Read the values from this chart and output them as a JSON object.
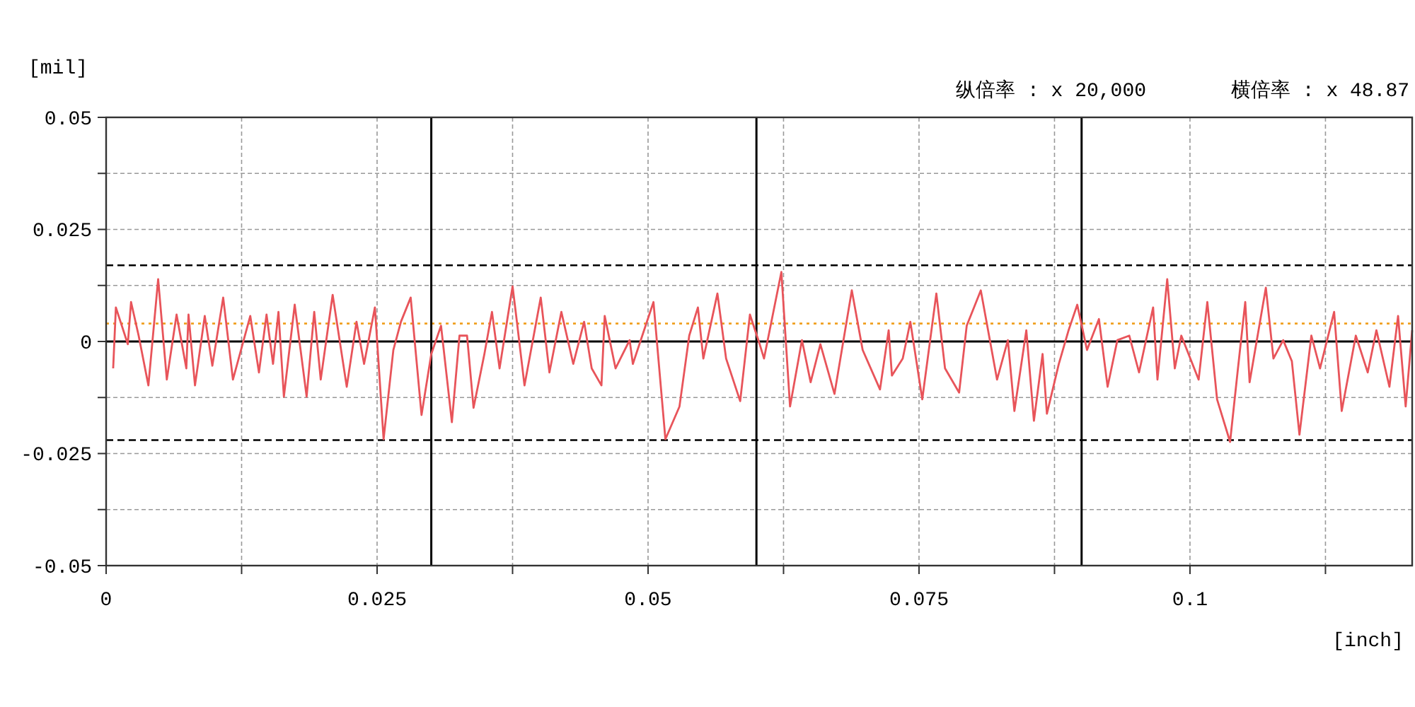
{
  "chart_data": {
    "type": "line",
    "ylabel": "[mil]",
    "xlabel": "[inch]",
    "annotations": [
      "纵倍率 : x 20,000",
      "横倍率 : x 48.87"
    ],
    "x": [
      0.00065,
      0.0009,
      0.002,
      0.0023,
      0.003,
      0.0039,
      0.0048,
      0.0056,
      0.0065,
      0.0074,
      0.0076,
      0.0082,
      0.0091,
      0.0098,
      0.0108,
      0.0117,
      0.0133,
      0.0141,
      0.0148,
      0.0154,
      0.0159,
      0.0164,
      0.0174,
      0.0185,
      0.0192,
      0.0198,
      0.0209,
      0.0222,
      0.0231,
      0.0238,
      0.0248,
      0.0256,
      0.0265,
      0.0272,
      0.0281,
      0.0291,
      0.03,
      0.0309,
      0.0319,
      0.0326,
      0.0333,
      0.0339,
      0.0349,
      0.0356,
      0.0363,
      0.0375,
      0.0379,
      0.0386,
      0.0401,
      0.0409,
      0.042,
      0.0431,
      0.0441,
      0.0448,
      0.0457,
      0.046,
      0.047,
      0.0483,
      0.0486,
      0.0505,
      0.0516,
      0.0529,
      0.0538,
      0.0546,
      0.0551,
      0.0564,
      0.0572,
      0.0585,
      0.0594,
      0.0603,
      0.0607,
      0.0623,
      0.0631,
      0.0642,
      0.065,
      0.0659,
      0.0672,
      0.0688,
      0.0698,
      0.0714,
      0.0722,
      0.0725,
      0.0735,
      0.0742,
      0.0753,
      0.0766,
      0.0774,
      0.0787,
      0.0794,
      0.0807,
      0.0822,
      0.0832,
      0.0838,
      0.0849,
      0.0856,
      0.0864,
      0.0868,
      0.0879,
      0.0888,
      0.0896,
      0.0905,
      0.0916,
      0.0924,
      0.0933,
      0.0944,
      0.0953,
      0.0966,
      0.097,
      0.0979,
      0.0986,
      0.0992,
      0.1008,
      0.1016,
      0.1025,
      0.1037,
      0.1044,
      0.1051,
      0.1055,
      0.107,
      0.1077,
      0.1086,
      0.1094,
      0.1101,
      0.1112,
      0.112,
      0.1133,
      0.114,
      0.1153,
      0.1164,
      0.1172,
      0.1184,
      0.1192,
      0.1199,
      0.1205
    ],
    "series": [
      {
        "color": "#e8545a",
        "values": [
          -0.006,
          0.0076,
          -0.0006,
          0.0088,
          0.0013,
          -0.0098,
          0.0139,
          -0.0085,
          0.006,
          -0.006,
          0.006,
          -0.0098,
          0.0057,
          -0.0054,
          0.0098,
          -0.0085,
          0.0057,
          -0.0069,
          0.006,
          -0.005,
          0.0066,
          -0.0123,
          0.0082,
          -0.0123,
          0.0066,
          -0.0085,
          0.0104,
          -0.0101,
          0.0044,
          -0.005,
          0.0076,
          -0.0218,
          -0.0019,
          0.0044,
          0.0098,
          -0.0164,
          -0.0028,
          0.0035,
          -0.018,
          0.0013,
          0.0013,
          -0.0148,
          -0.0028,
          0.0066,
          -0.006,
          0.0123,
          0.0044,
          -0.0098,
          0.0098,
          -0.0069,
          0.0066,
          -0.005,
          0.0044,
          -0.006,
          -0.0098,
          0.0057,
          -0.006,
          0.0003,
          -0.005,
          0.0088,
          -0.0218,
          -0.0145,
          0.0013,
          0.0076,
          -0.0038,
          0.0107,
          -0.0038,
          -0.0133,
          0.006,
          -0.0006,
          -0.0038,
          0.0155,
          -0.0145,
          0.0003,
          -0.0091,
          -0.0006,
          -0.0117,
          0.0114,
          -0.0019,
          -0.0107,
          0.0025,
          -0.0076,
          -0.0038,
          0.0044,
          -0.0129,
          0.0107,
          -0.006,
          -0.0114,
          0.0035,
          0.0114,
          -0.0085,
          0.0003,
          -0.0155,
          0.0025,
          -0.0177,
          -0.0028,
          -0.0161,
          -0.005,
          0.0025,
          0.0082,
          -0.0019,
          0.005,
          -0.0101,
          0.0003,
          0.0013,
          -0.0069,
          0.0076,
          -0.0085,
          0.0139,
          -0.006,
          0.0013,
          -0.0085,
          0.0088,
          -0.0129,
          -0.0224,
          -0.0066,
          0.0088,
          -0.0091,
          0.012,
          -0.0038,
          0.0003,
          -0.0044,
          -0.0208,
          0.0013,
          -0.006,
          0.0066,
          -0.0155,
          0.0013,
          -0.0069,
          0.0025,
          -0.0101,
          0.0057,
          -0.0145,
          0.0025
        ]
      }
    ],
    "xlim": [
      0,
      0.1205
    ],
    "ylim": [
      -0.05,
      0.05
    ],
    "xticks": [
      0,
      {
        "value": 0.0125,
        "label": null
      },
      0.025,
      {
        "value": 0.0375,
        "label": null
      },
      0.05,
      {
        "value": 0.0625,
        "label": null
      },
      0.075,
      {
        "value": 0.0875,
        "label": null
      },
      0.1,
      {
        "value": 0.1125,
        "label": null
      }
    ],
    "yticks": [
      -0.05,
      {
        "value": -0.0375,
        "label": null
      },
      -0.025,
      {
        "value": -0.0125,
        "label": null
      },
      0,
      {
        "value": 0.0125,
        "label": null
      },
      0.025,
      {
        "value": 0.0375,
        "label": null
      },
      0.05
    ],
    "grid": true,
    "ref_lines": [
      {
        "axis": "y",
        "value": 0,
        "color": "#000000",
        "line_style": "solid"
      },
      {
        "axis": "y",
        "value": 0.017,
        "color": "#000000",
        "line_style": "dashed"
      },
      {
        "axis": "y",
        "value": -0.022,
        "color": "#000000",
        "line_style": "dashed"
      },
      {
        "axis": "y",
        "value": 0.004,
        "color": "#f0a020",
        "line_style": "dotted"
      },
      {
        "axis": "x",
        "value": 0.03,
        "color": "#000000",
        "line_style": "solid"
      },
      {
        "axis": "x",
        "value": 0.06,
        "color": "#000000",
        "line_style": "solid"
      },
      {
        "axis": "x",
        "value": 0.09,
        "color": "#000000",
        "line_style": "solid"
      }
    ]
  }
}
